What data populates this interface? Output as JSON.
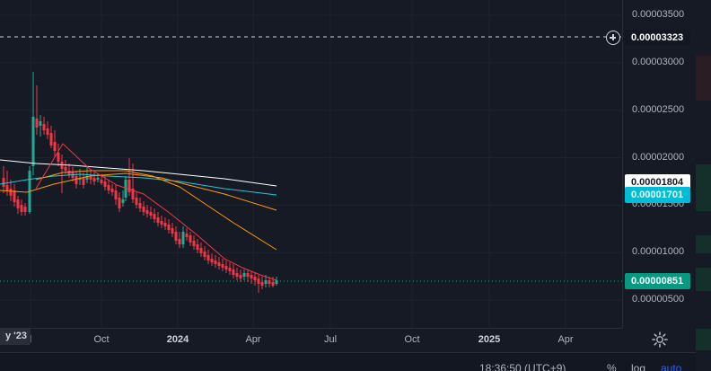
{
  "price_axis": {
    "ticks": [
      "0.00003500",
      "0.00003000",
      "0.00002500",
      "0.00002000",
      "0.00001500",
      "0.00001000",
      "0.00000500"
    ],
    "tick_values": [
      3.5e-05,
      3e-05,
      2.5e-05,
      2e-05,
      1.5e-05,
      1e-05,
      5e-06
    ],
    "crosshair_price": "0.00003323",
    "crosshair_value": 3.323e-05,
    "labels": {
      "ma_white": "0.00001804",
      "ma_teal": "0.00001701",
      "last_price": "0.00000851"
    }
  },
  "time_axis": {
    "partial_label": "y '23",
    "labels": [
      {
        "text": "l",
        "bold": false
      },
      {
        "text": "Oct",
        "bold": false
      },
      {
        "text": "2024",
        "bold": true
      },
      {
        "text": "Apr",
        "bold": false
      },
      {
        "text": "Jul",
        "bold": false
      },
      {
        "text": "Oct",
        "bold": false
      },
      {
        "text": "2025",
        "bold": true
      },
      {
        "text": "Apr",
        "bold": false
      }
    ]
  },
  "bottom_bar": {
    "clock": "18:36:50 (UTC+9)",
    "percent": "%",
    "log": "log",
    "auto": "auto"
  },
  "icons": {
    "add": "plus-circle-icon",
    "settings": "gear-icon"
  },
  "colors": {
    "background": "#161a25",
    "up": "#22ab94",
    "down": "#f23645",
    "ma_white": "#ffffff",
    "ma_teal": "#26c6da",
    "ma_orange": "#ff9800",
    "ma_red": "#f23645",
    "axis_text": "#b2b5be",
    "accent": "#2962ff"
  }
}
